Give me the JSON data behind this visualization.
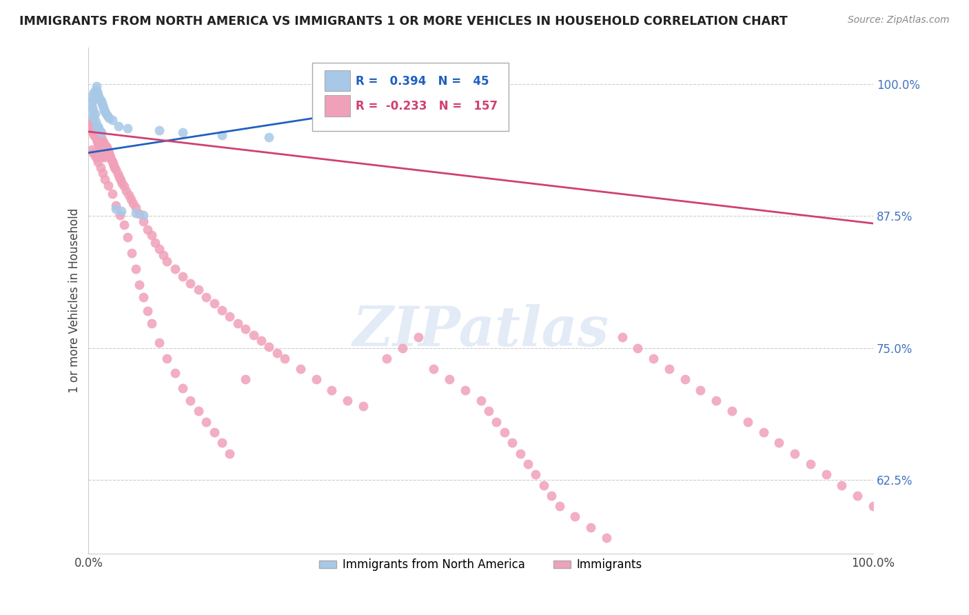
{
  "title": "IMMIGRANTS FROM NORTH AMERICA VS IMMIGRANTS 1 OR MORE VEHICLES IN HOUSEHOLD CORRELATION CHART",
  "source": "Source: ZipAtlas.com",
  "ylabel": "1 or more Vehicles in Household",
  "xlim": [
    0.0,
    1.0
  ],
  "ylim": [
    0.555,
    1.035
  ],
  "yticks": [
    0.625,
    0.75,
    0.875,
    1.0
  ],
  "ytick_labels": [
    "62.5%",
    "75.0%",
    "87.5%",
    "100.0%"
  ],
  "xtick_labels": [
    "0.0%",
    "100.0%"
  ],
  "legend_blue_label": "Immigrants from North America",
  "legend_pink_label": "Immigrants",
  "R_blue": 0.394,
  "N_blue": 45,
  "R_pink": -0.233,
  "N_pink": 157,
  "blue_color": "#a8c8e8",
  "pink_color": "#f0a0b8",
  "blue_line_color": "#2060c0",
  "pink_line_color": "#d04070",
  "watermark": "ZIPatlas",
  "blue_trend_x": [
    0.0,
    0.35
  ],
  "blue_trend_y": [
    0.935,
    0.975
  ],
  "pink_trend_x": [
    0.0,
    1.0
  ],
  "pink_trend_y": [
    0.955,
    0.868
  ]
}
